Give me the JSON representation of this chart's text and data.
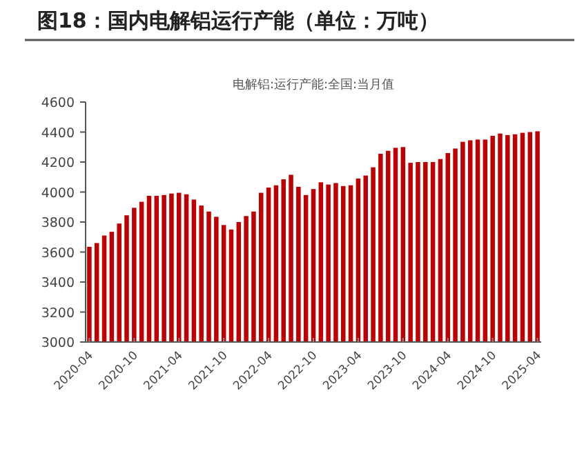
{
  "chart_data": {
    "type": "bar",
    "title": "图18：国内电解铝运行产能（单位：万吨）",
    "subtitle": "电解铝:运行产能:全国:当月值",
    "categories": [
      "2020-04",
      null,
      null,
      null,
      null,
      null,
      "2020-10",
      null,
      null,
      null,
      null,
      null,
      "2021-04",
      null,
      null,
      null,
      null,
      null,
      "2021-10",
      null,
      null,
      null,
      null,
      null,
      "2022-04",
      null,
      null,
      null,
      null,
      null,
      "2022-10",
      null,
      null,
      null,
      null,
      null,
      "2023-04",
      null,
      null,
      null,
      null,
      null,
      "2023-10",
      null,
      null,
      null,
      null,
      null,
      "2024-04",
      null,
      null,
      null,
      null,
      null,
      "2024-10",
      null,
      null,
      null,
      null,
      null,
      "2025-04"
    ],
    "series": [
      {
        "color": "#c00000",
        "values": [
          3635,
          3660,
          3710,
          3735,
          3790,
          3845,
          3895,
          3935,
          3975,
          3975,
          3980,
          3990,
          3995,
          3985,
          3950,
          3910,
          3870,
          3835,
          3780,
          3750,
          3800,
          3840,
          3870,
          3995,
          4030,
          4045,
          4085,
          4115,
          4035,
          3980,
          4020,
          4065,
          4050,
          4060,
          4040,
          4045,
          4090,
          4110,
          4165,
          4255,
          4275,
          4295,
          4300,
          4195,
          4200,
          4200,
          4200,
          4220,
          4260,
          4290,
          4335,
          4345,
          4350,
          4350,
          4375,
          4390,
          4380,
          4385,
          4395,
          4400,
          4405
        ]
      }
    ],
    "ylim": [
      3000,
      4600
    ],
    "yticks": [
      3000,
      3200,
      3400,
      3600,
      3800,
      4000,
      4200,
      4400,
      4600
    ],
    "grid": false
  }
}
